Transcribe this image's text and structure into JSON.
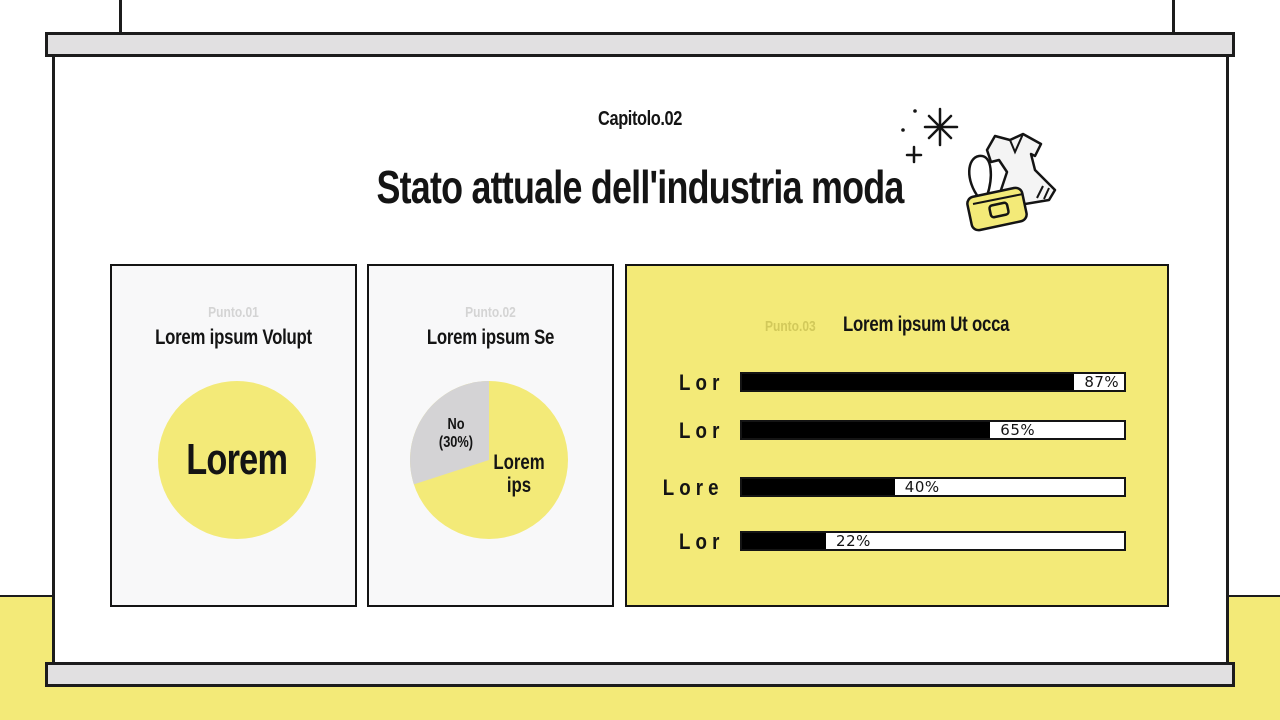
{
  "slide": {
    "chapter": "Capitolo.02",
    "title": "Stato attuale dell'industria moda",
    "decoration_icon": "fashion-dress-handbag-sparkle-icon"
  },
  "colors": {
    "accent_yellow": "#f3ea78",
    "card_bg": "#f8f8f9",
    "frame": "#1c1c1c",
    "rod": "#e1e0e1",
    "pie_gray": "#d4d3d5"
  },
  "cards": [
    {
      "kicker": "Punto.01",
      "title": "Lorem ipsum Volupt",
      "circle_label": "Lorem"
    },
    {
      "kicker": "Punto.02",
      "title": "Lorem ipsum Se",
      "pie": {
        "no_label_line1": "No",
        "no_label_line2": "(30%)",
        "yes_label_line1": "Lorem",
        "yes_label_line2": "ips"
      }
    },
    {
      "kicker": "Punto.03",
      "title": "Lorem ipsum Ut occa",
      "bars": [
        {
          "label": "Lor",
          "value": 87,
          "value_label": "87%"
        },
        {
          "label": "Lor",
          "value": 65,
          "value_label": "65%"
        },
        {
          "label": "Lore",
          "value": 40,
          "value_label": "40%"
        },
        {
          "label": "Lor",
          "value": 22,
          "value_label": "22%"
        }
      ]
    }
  ],
  "chart_data": [
    {
      "type": "pie",
      "title": "Lorem ipsum Se",
      "categories": [
        "No",
        "Lorem ips"
      ],
      "values": [
        30,
        70
      ],
      "labels": [
        "No (30%)",
        "Lorem ips"
      ],
      "colors": [
        "#d4d3d5",
        "#f3ea78"
      ]
    },
    {
      "type": "bar",
      "orientation": "horizontal",
      "title": "Lorem ipsum Ut occa",
      "categories": [
        "Lor",
        "Lor",
        "Lore",
        "Lor"
      ],
      "values": [
        87,
        65,
        40,
        22
      ],
      "value_labels": [
        "87%",
        "65%",
        "40%",
        "22%"
      ],
      "xlim": [
        0,
        100
      ],
      "grid": false
    }
  ]
}
